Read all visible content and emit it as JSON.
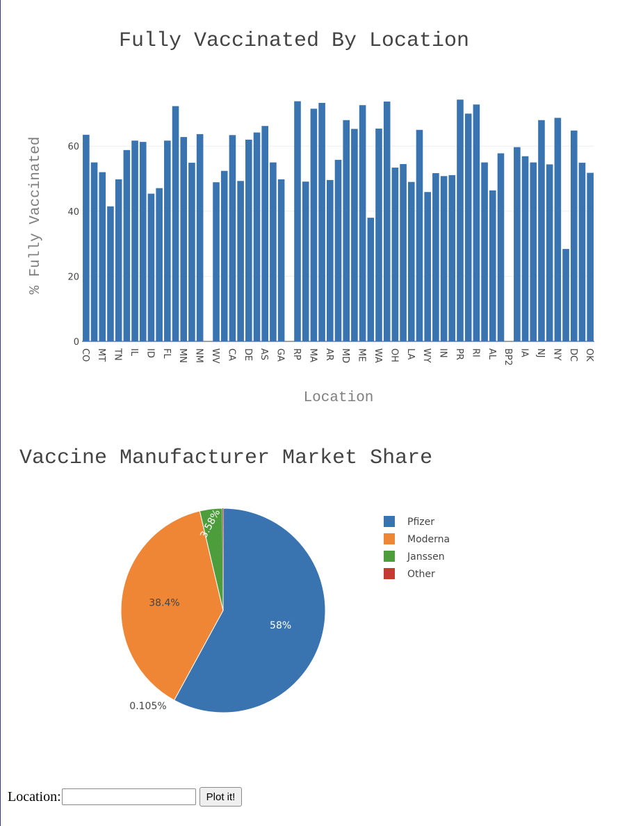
{
  "chart_data": [
    {
      "type": "bar",
      "title": "Fully Vaccinated By Location",
      "xlabel": "Location",
      "ylabel": "% Fully Vaccinated",
      "ylim": [
        0,
        75
      ],
      "yticks": [
        0,
        20,
        40,
        60
      ],
      "grid": true,
      "color": "#3a74b0",
      "categories": [
        "CO",
        "",
        "MT",
        "",
        "TN",
        "",
        "IL",
        "",
        "ID",
        "",
        "FL",
        "",
        "MN",
        "",
        "NM",
        "",
        "WV",
        "",
        "CA",
        "",
        "DE",
        "",
        "AS",
        "",
        "GA",
        "",
        "RP",
        "",
        "MA",
        "",
        "AR",
        "",
        "MD",
        "",
        "ME",
        "",
        "WA",
        "",
        "OH",
        "",
        "LA",
        "",
        "WY",
        "",
        "IN",
        "",
        "PR",
        "",
        "RI",
        "",
        "AL",
        "",
        "BP2",
        "",
        "IA",
        "",
        "NJ",
        "",
        "NY",
        "",
        "DC",
        "",
        "OK"
      ],
      "values": [
        63.5,
        55,
        52,
        41.5,
        49.8,
        58.8,
        61.7,
        61.3,
        45.4,
        47.1,
        61.7,
        72.3,
        62.8,
        54.9,
        63.7,
        null,
        48.9,
        52.4,
        63.4,
        49.3,
        62,
        64.2,
        66.2,
        55,
        49.8,
        null,
        73.8,
        49.1,
        71.5,
        73.3,
        49.6,
        55.8,
        68,
        65.3,
        72.6,
        38,
        65.4,
        73.7,
        53.4,
        54.5,
        49,
        65,
        45.9,
        51.7,
        50.8,
        51.1,
        74.3,
        70,
        72.8,
        55,
        46.4,
        57.8,
        null,
        59.7,
        56.9,
        55,
        68,
        54.4,
        68.7,
        28.4,
        64.8,
        54.9,
        51.8
      ]
    },
    {
      "type": "pie",
      "title": "Vaccine Manufacturer Market Share",
      "labels": [
        "Pfizer",
        "Moderna",
        "Janssen",
        "Other"
      ],
      "values": [
        58,
        38.4,
        3.58,
        0.105
      ],
      "display_labels": [
        "58%",
        "38.4%",
        "3.58%",
        "0.105%"
      ],
      "colors": [
        "#3a74b0",
        "#ef8636",
        "#4e9d3d",
        "#c53a32"
      ],
      "legend": "right"
    }
  ],
  "form": {
    "location_label": "Location:",
    "location_value": "",
    "button_label": "Plot it!"
  }
}
